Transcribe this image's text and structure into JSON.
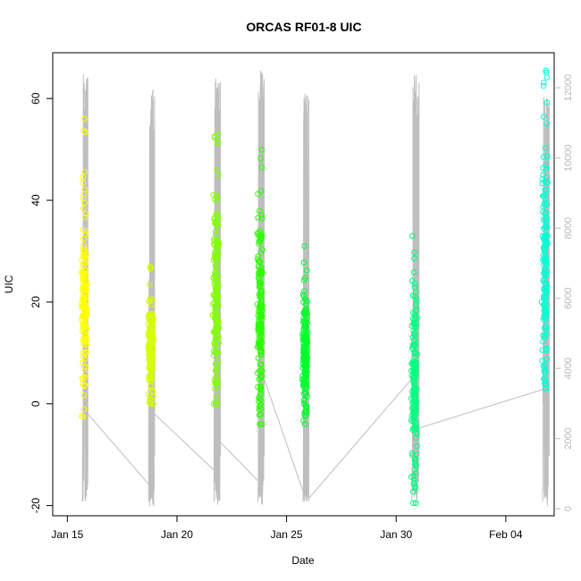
{
  "chart_data": {
    "type": "scatter",
    "title": "ORCAS RF01-8 UIC",
    "xlabel": "Date",
    "ylabel": "UIC",
    "x_ticks": [
      "Jan 15",
      "Jan 20",
      "Jan 25",
      "Jan 30",
      "Feb 04"
    ],
    "y_ticks": [
      "-20",
      "0",
      "20",
      "40",
      "60"
    ],
    "y2_ticks": [
      "0",
      "2000",
      "4000",
      "6000",
      "8000",
      "10000",
      "12000"
    ],
    "xlim": [
      "2016-01-14T08:00",
      "2016-02-06T05:00"
    ],
    "ylim": [
      -22,
      69
    ],
    "y2lim": [
      -200,
      13000
    ],
    "grid": false,
    "legend": "none",
    "colors": {
      "flight_1": "#ffff00",
      "flight_2": "#d4ff00",
      "flight_3": "#80ff00",
      "flight_4": "#2bff00",
      "flight_5": "#00ff2b",
      "flight_6": "#00ff80",
      "flight_7": "#00ffd4",
      "altitude": "#bebebe",
      "secondary_axis": "#b8b8b8"
    },
    "flights": [
      {
        "date": "2016-01-15",
        "start": "2016-01-15T16:30",
        "end": "2016-01-15T22:30",
        "uic_range": [
          -2.5,
          56
        ],
        "uic_center": 18,
        "uic_spread": 7,
        "alt_max": 12400
      },
      {
        "date": "2016-01-18",
        "start": "2016-01-18T17:00",
        "end": "2016-01-18T23:30",
        "uic_range": [
          0,
          27
        ],
        "uic_center": 11,
        "uic_spread": 5,
        "alt_max": 12000
      },
      {
        "date": "2016-01-21",
        "start": "2016-01-21T16:30",
        "end": "2016-01-21T23:30",
        "uic_range": [
          0,
          53
        ],
        "uic_center": 22,
        "uic_spread": 12,
        "alt_max": 12400
      },
      {
        "date": "2016-01-23",
        "start": "2016-01-23T16:30",
        "end": "2016-01-23T23:30",
        "uic_range": [
          -4,
          50
        ],
        "uic_center": 16,
        "uic_spread": 10,
        "alt_max": 12500
      },
      {
        "date": "2016-01-25",
        "start": "2016-01-25T18:00",
        "end": "2016-01-26T00:30",
        "uic_range": [
          -4,
          31
        ],
        "uic_center": 10,
        "uic_spread": 6,
        "alt_max": 11900
      },
      {
        "date": "2016-01-30",
        "start": "2016-01-30T17:00",
        "end": "2016-01-31T01:00",
        "uic_range": [
          -19.5,
          33
        ],
        "uic_center": 5,
        "uic_spread": 10,
        "alt_max": 12400
      },
      {
        "date": "2016-02-05",
        "start": "2016-02-05T16:30",
        "end": "2016-02-05T23:30",
        "uic_range": [
          3,
          65.5
        ],
        "uic_center": 24,
        "uic_spread": 12,
        "alt_max": 11800
      }
    ],
    "altitude_series": {
      "name": "",
      "unit": "",
      "axis": "right",
      "min": 0,
      "connections": [
        [
          "2016-01-15T22:30",
          2700,
          "2016-01-18T17:00",
          700
        ],
        [
          "2016-01-18T23:30",
          2700,
          "2016-01-21T16:30",
          1100
        ],
        [
          "2016-01-21T23:30",
          1900,
          "2016-01-23T16:30",
          800
        ],
        [
          "2016-01-23T23:30",
          3700,
          "2016-01-25T18:00",
          500
        ],
        [
          "2016-01-26T00:30",
          300,
          "2016-01-30T17:00",
          3700
        ],
        [
          "2016-01-31T01:00",
          2300,
          "2016-02-05T16:30",
          3400
        ]
      ]
    }
  }
}
